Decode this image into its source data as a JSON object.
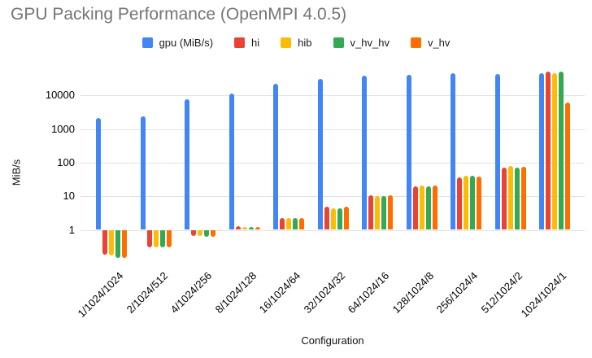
{
  "chart_data": {
    "type": "bar",
    "title": "GPU Packing Performance (OpenMPI 4.0.5)",
    "xlabel": "Configuration",
    "ylabel": "MiB/s",
    "y_scale": "log",
    "y_ticks": [
      1,
      10,
      100,
      1000,
      10000
    ],
    "ylim": [
      0.13,
      60000
    ],
    "grid": true,
    "legend_position": "top",
    "title_color": "#757575",
    "gridline_color": "#e2e2e2",
    "categories": [
      "1/1024/1024",
      "2/1024/512",
      "4/1024/256",
      "8/1024/128",
      "16/1024/64",
      "32/1024/32",
      "64/1024/16",
      "128/1024/8",
      "256/1024/4",
      "512/1024/2",
      "1024/1024/1"
    ],
    "series": [
      {
        "name": "gpu (MiB/s)",
        "color": "#4285F4",
        "values": [
          2100,
          2400,
          7900,
          11600,
          22000,
          31000,
          38000,
          42000,
          45000,
          43000,
          47000
        ]
      },
      {
        "name": "hi",
        "color": "#EA4335",
        "values": [
          0.18,
          0.3,
          0.65,
          1.3,
          2.3,
          4.8,
          10.5,
          20,
          36,
          73,
          50000
        ]
      },
      {
        "name": "hib",
        "color": "#FBBC04",
        "values": [
          0.17,
          0.3,
          0.65,
          1.2,
          2.2,
          4.5,
          10,
          21,
          41,
          78,
          45000
        ]
      },
      {
        "name": "v_hv_hv",
        "color": "#34A853",
        "values": [
          0.15,
          0.3,
          0.63,
          1.2,
          2.2,
          4.5,
          10,
          20,
          41,
          72,
          51000
        ]
      },
      {
        "name": "v_hv",
        "color": "#FF6D01",
        "values": [
          0.15,
          0.3,
          0.63,
          1.2,
          2.3,
          4.8,
          10.5,
          21,
          39,
          77,
          6000
        ]
      }
    ]
  }
}
